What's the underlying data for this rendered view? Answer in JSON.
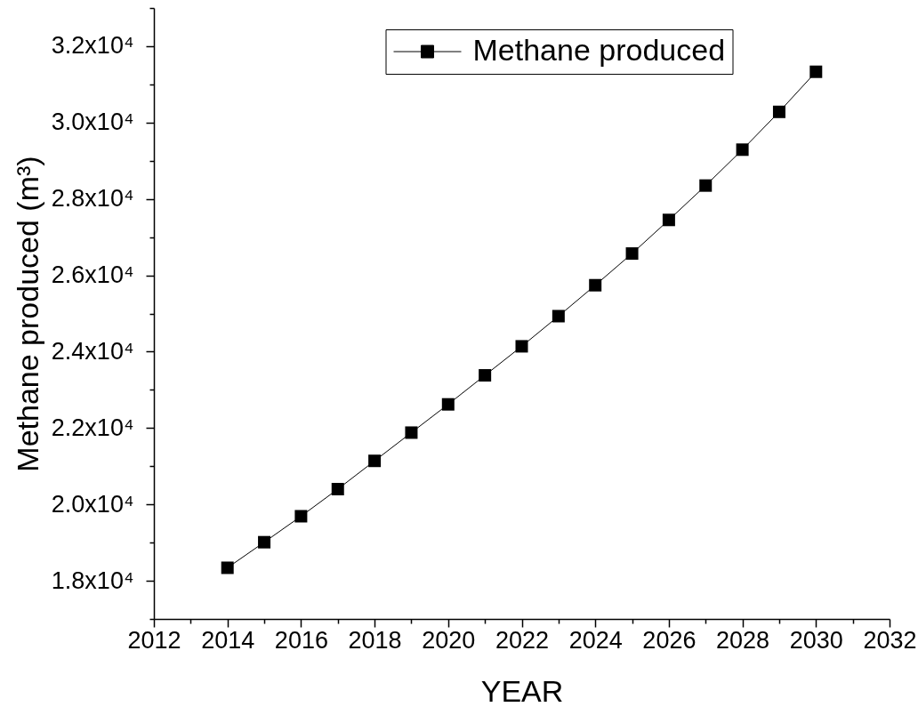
{
  "chart_data": {
    "type": "line",
    "xlabel": "YEAR",
    "ylabel": "Methane produced (m³)",
    "x": [
      2014,
      2015,
      2016,
      2017,
      2018,
      2019,
      2020,
      2021,
      2022,
      2023,
      2024,
      2025,
      2026,
      2027,
      2028,
      2029,
      2030
    ],
    "series": [
      {
        "name": "Methane produced",
        "color": "#000000",
        "values": [
          18340,
          19010,
          19690,
          20400,
          21140,
          21880,
          22620,
          23380,
          24140,
          24930,
          25740,
          26570,
          27450,
          28350,
          29290,
          30280,
          31330
        ]
      }
    ],
    "xlim": [
      2012,
      2032
    ],
    "xticks": [
      2012,
      {
        "value": 2013,
        "label": null
      },
      2014,
      {
        "value": 2015,
        "label": null
      },
      2016,
      {
        "value": 2017,
        "label": null
      },
      2018,
      {
        "value": 2019,
        "label": null
      },
      2020,
      {
        "value": 2021,
        "label": null
      },
      2022,
      {
        "value": 2023,
        "label": null
      },
      2024,
      {
        "value": 2025,
        "label": null
      },
      2026,
      {
        "value": 2027,
        "label": null
      },
      2028,
      {
        "value": 2029,
        "label": null
      },
      2030,
      {
        "value": 2031,
        "label": null
      },
      2032
    ],
    "ylim": [
      17000,
      33000
    ],
    "yticks": [
      {
        "value": 17000,
        "label": null
      },
      {
        "value": 18000,
        "label": "1.8x10⁴"
      },
      {
        "value": 19000,
        "label": null
      },
      {
        "value": 20000,
        "label": "2.0x10⁴"
      },
      {
        "value": 21000,
        "label": null
      },
      {
        "value": 22000,
        "label": "2.2x10⁴"
      },
      {
        "value": 23000,
        "label": null
      },
      {
        "value": 24000,
        "label": "2.4x10⁴"
      },
      {
        "value": 25000,
        "label": null
      },
      {
        "value": 26000,
        "label": "2.6x10⁴"
      },
      {
        "value": 27000,
        "label": null
      },
      {
        "value": 28000,
        "label": "2.8x10⁴"
      },
      {
        "value": 29000,
        "label": null
      },
      {
        "value": 30000,
        "label": "3.0x10⁴"
      },
      {
        "value": 31000,
        "label": null
      },
      {
        "value": 32000,
        "label": "3.2x10⁴"
      },
      {
        "value": 33000,
        "label": null
      }
    ],
    "legend": "top",
    "grid": false,
    "marker": "square",
    "line_style": "solid"
  }
}
